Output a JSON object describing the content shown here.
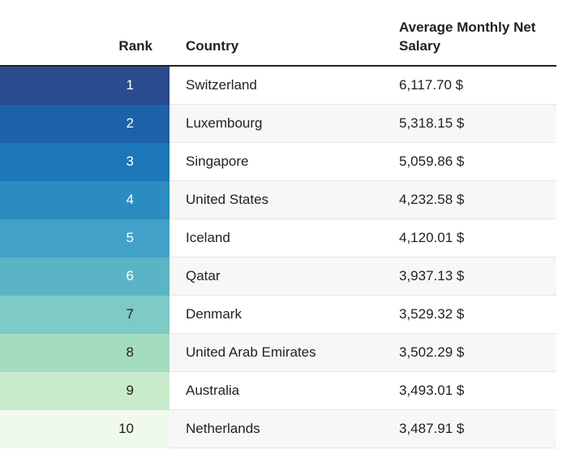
{
  "chart_data": {
    "type": "table",
    "columns": [
      "Rank",
      "Country",
      "Average Monthly Net Salary"
    ],
    "rows": [
      {
        "rank": "1",
        "country": "Switzerland",
        "salary": "6,117.70 $",
        "value": 6117.7
      },
      {
        "rank": "2",
        "country": "Luxembourg",
        "salary": "5,318.15 $",
        "value": 5318.15
      },
      {
        "rank": "3",
        "country": "Singapore",
        "salary": "5,059.86 $",
        "value": 5059.86
      },
      {
        "rank": "4",
        "country": "United States",
        "salary": "4,232.58 $",
        "value": 4232.58
      },
      {
        "rank": "5",
        "country": "Iceland",
        "salary": "4,120.01 $",
        "value": 4120.01
      },
      {
        "rank": "6",
        "country": "Qatar",
        "salary": "3,937.13 $",
        "value": 3937.13
      },
      {
        "rank": "7",
        "country": "Denmark",
        "salary": "3,529.32 $",
        "value": 3529.32
      },
      {
        "rank": "8",
        "country": "United Arab Emirates",
        "salary": "3,502.29 $",
        "value": 3502.29
      },
      {
        "rank": "9",
        "country": "Australia",
        "salary": "3,493.01 $",
        "value": 3493.01
      },
      {
        "rank": "10",
        "country": "Netherlands",
        "salary": "3,487.91 $",
        "value": 3487.91
      }
    ],
    "rank_colors": [
      "#2a4b8d",
      "#1d62a8",
      "#1b77b8",
      "#2b8cc1",
      "#41a1c8",
      "#5ab4c6",
      "#7dcac6",
      "#a4dcc1",
      "#c9ebcb",
      "#eff9ec"
    ],
    "rank_text_colors": [
      "#ffffff",
      "#ffffff",
      "#ffffff",
      "#ffffff",
      "#ffffff",
      "#ffffff",
      "#222222",
      "#222222",
      "#222222",
      "#222222"
    ]
  }
}
